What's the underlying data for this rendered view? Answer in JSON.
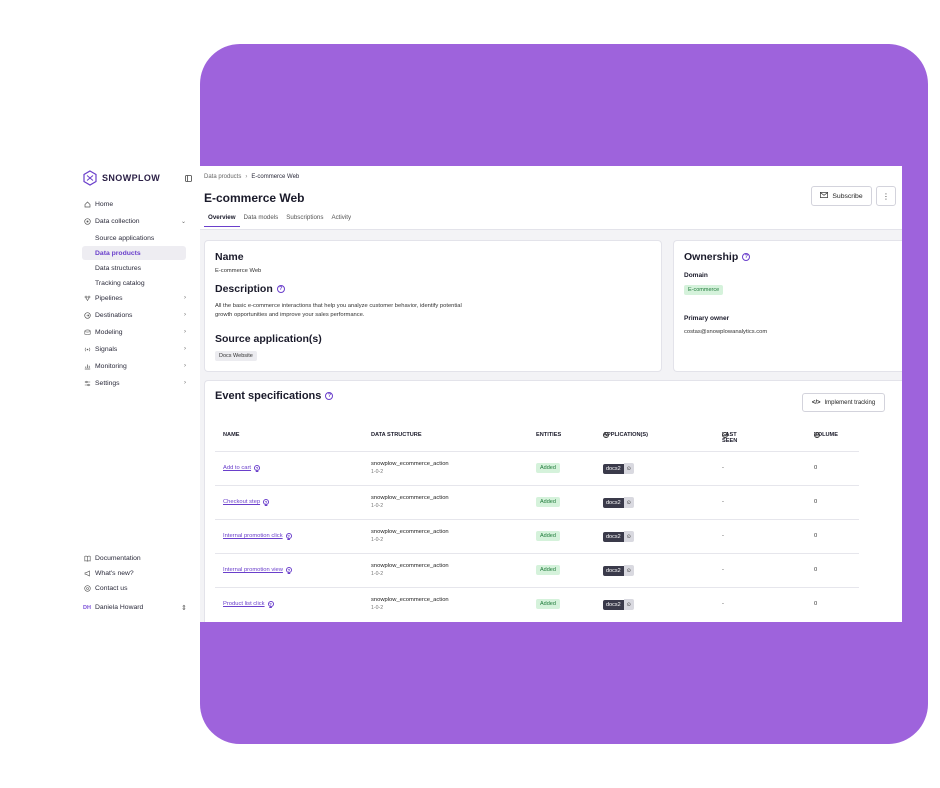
{
  "sidebar": {
    "brand": "SNOWPLOW",
    "items": [
      {
        "label": "Home",
        "icon": "home-icon"
      },
      {
        "label": "Data collection",
        "icon": "data-collection-icon",
        "expanded": true,
        "children": [
          "Source applications",
          "Data products",
          "Data structures",
          "Tracking catalog"
        ]
      },
      {
        "label": "Pipelines",
        "icon": "pipelines-icon"
      },
      {
        "label": "Destinations",
        "icon": "destinations-icon"
      },
      {
        "label": "Modeling",
        "icon": "modeling-icon"
      },
      {
        "label": "Signals",
        "icon": "signals-icon"
      },
      {
        "label": "Monitoring",
        "icon": "monitoring-icon"
      },
      {
        "label": "Settings",
        "icon": "settings-icon"
      }
    ],
    "active_child": "Data products",
    "bottom": [
      {
        "label": "Documentation",
        "icon": "book-icon"
      },
      {
        "label": "What's new?",
        "icon": "megaphone-icon"
      },
      {
        "label": "Contact us",
        "icon": "chat-icon"
      }
    ],
    "user": {
      "initials": "DH",
      "name": "Daniela Howard"
    }
  },
  "header": {
    "breadcrumbs": [
      "Data products",
      "E-commerce Web"
    ],
    "title": "E-commerce Web",
    "tabs": [
      "Overview",
      "Data models",
      "Subscriptions",
      "Activity"
    ],
    "active_tab": "Overview",
    "subscribe_label": "Subscribe"
  },
  "info": {
    "name_heading": "Name",
    "name_value": "E-commerce Web",
    "description_heading": "Description",
    "description_line1": "All the basic e-commerce interactions that help you analyze customer behavior, identify potential",
    "description_line2": "growth opportunities and improve your sales performance.",
    "source_heading": "Source application(s)",
    "source_tag": "Docs Website"
  },
  "ownership": {
    "heading": "Ownership",
    "domain_label": "Domain",
    "domain_value": "E-commerce",
    "owner_label": "Primary owner",
    "owner_value": "costas@snowplowanalytics.com"
  },
  "events": {
    "heading": "Event specifications",
    "implement_label": "Implement tracking",
    "columns": {
      "name": "NAME",
      "data_structure": "DATA STRUCTURE",
      "entities": "ENTITIES",
      "applications": "APPLICATION(S)",
      "last_seen": "LAST SEEN",
      "volume": "VOLUME"
    },
    "rows": [
      {
        "name": "Add to cart",
        "ds": "snowplow_ecommerce_action",
        "ver": "1-0-2",
        "entities": "Added",
        "app": "docs2",
        "last_seen": "-",
        "volume": "0"
      },
      {
        "name": "Checkout step",
        "ds": "snowplow_ecommerce_action",
        "ver": "1-0-2",
        "entities": "Added",
        "app": "docs2",
        "last_seen": "-",
        "volume": "0"
      },
      {
        "name": "Internal promotion click",
        "ds": "snowplow_ecommerce_action",
        "ver": "1-0-2",
        "entities": "Added",
        "app": "docs2",
        "last_seen": "-",
        "volume": "0"
      },
      {
        "name": "Internal promotion view",
        "ds": "snowplow_ecommerce_action",
        "ver": "1-0-2",
        "entities": "Added",
        "app": "docs2",
        "last_seen": "-",
        "volume": "0"
      },
      {
        "name": "Product list click",
        "ds": "snowplow_ecommerce_action",
        "ver": "1-0-2",
        "entities": "Added",
        "app": "docs2",
        "last_seen": "-",
        "volume": "0"
      }
    ]
  },
  "colors": {
    "accent": "#6a3fcb",
    "backdrop": "#9e63dc",
    "added_bg": "#d5f2db",
    "added_fg": "#1f7a3a"
  }
}
